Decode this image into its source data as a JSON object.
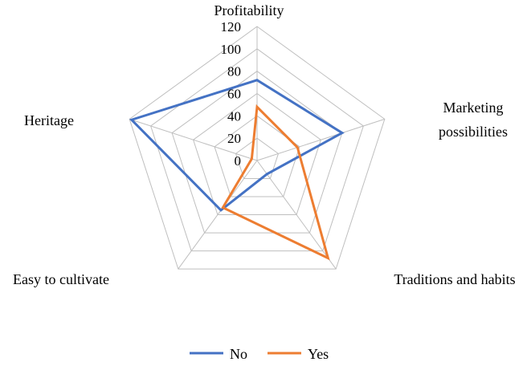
{
  "chart_data": {
    "type": "radar",
    "title": "",
    "categories": [
      "Profitability",
      "Marketing possibilities",
      "Traditions and habits",
      "Easy to cultivate",
      "Heritage"
    ],
    "axis_ticks": [
      "0",
      "20",
      "40",
      "60",
      "80",
      "100",
      "120"
    ],
    "rlim": [
      0,
      120
    ],
    "grid": true,
    "legend_position": "bottom",
    "series": [
      {
        "name": "No",
        "color": "#4472C4",
        "values": [
          72,
          80,
          15,
          55,
          118
        ]
      },
      {
        "name": "Yes",
        "color": "#ED7D31",
        "values": [
          48,
          38,
          108,
          52,
          5
        ]
      }
    ]
  }
}
